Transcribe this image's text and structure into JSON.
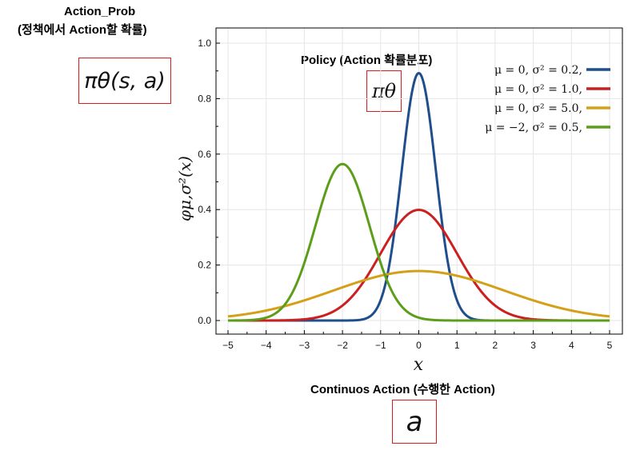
{
  "annotations": {
    "action_prob_title": "Action_Prob",
    "action_prob_subtitle": "(정책에서 Action할 확률)",
    "action_prob_formula": "πθ(s, a)",
    "policy_title": "Policy (Action 확률분포)",
    "policy_formula": "πθ",
    "continuous_title": "Continuos Action (수행한 Action)",
    "continuous_formula": "a"
  },
  "chart_data": {
    "type": "line",
    "title": "",
    "xlabel": "x",
    "ylabel": "φμ,σ²(x)",
    "xlim": [
      -5,
      5
    ],
    "ylim": [
      0,
      1.0
    ],
    "x_ticks": [
      "−5",
      "−4",
      "−3",
      "−2",
      "−1",
      "0",
      "1",
      "2",
      "3",
      "4",
      "5"
    ],
    "y_ticks": [
      "0.0",
      "0.2",
      "0.4",
      "0.6",
      "0.8",
      "1.0"
    ],
    "grid": true,
    "legend_position": "top-right",
    "series": [
      {
        "name": "μ = 0,   σ² = 0.2,",
        "mu": 0,
        "variance": 0.2,
        "color": "#1f4e8c"
      },
      {
        "name": "μ = 0,   σ² = 1.0,",
        "mu": 0,
        "variance": 1.0,
        "color": "#cc1f1f"
      },
      {
        "name": "μ = 0,   σ² = 5.0,",
        "mu": 0,
        "variance": 5.0,
        "color": "#d4a017"
      },
      {
        "name": "μ = −2,  σ² = 0.5,",
        "mu": -2,
        "variance": 0.5,
        "color": "#5c9e1a"
      }
    ]
  }
}
